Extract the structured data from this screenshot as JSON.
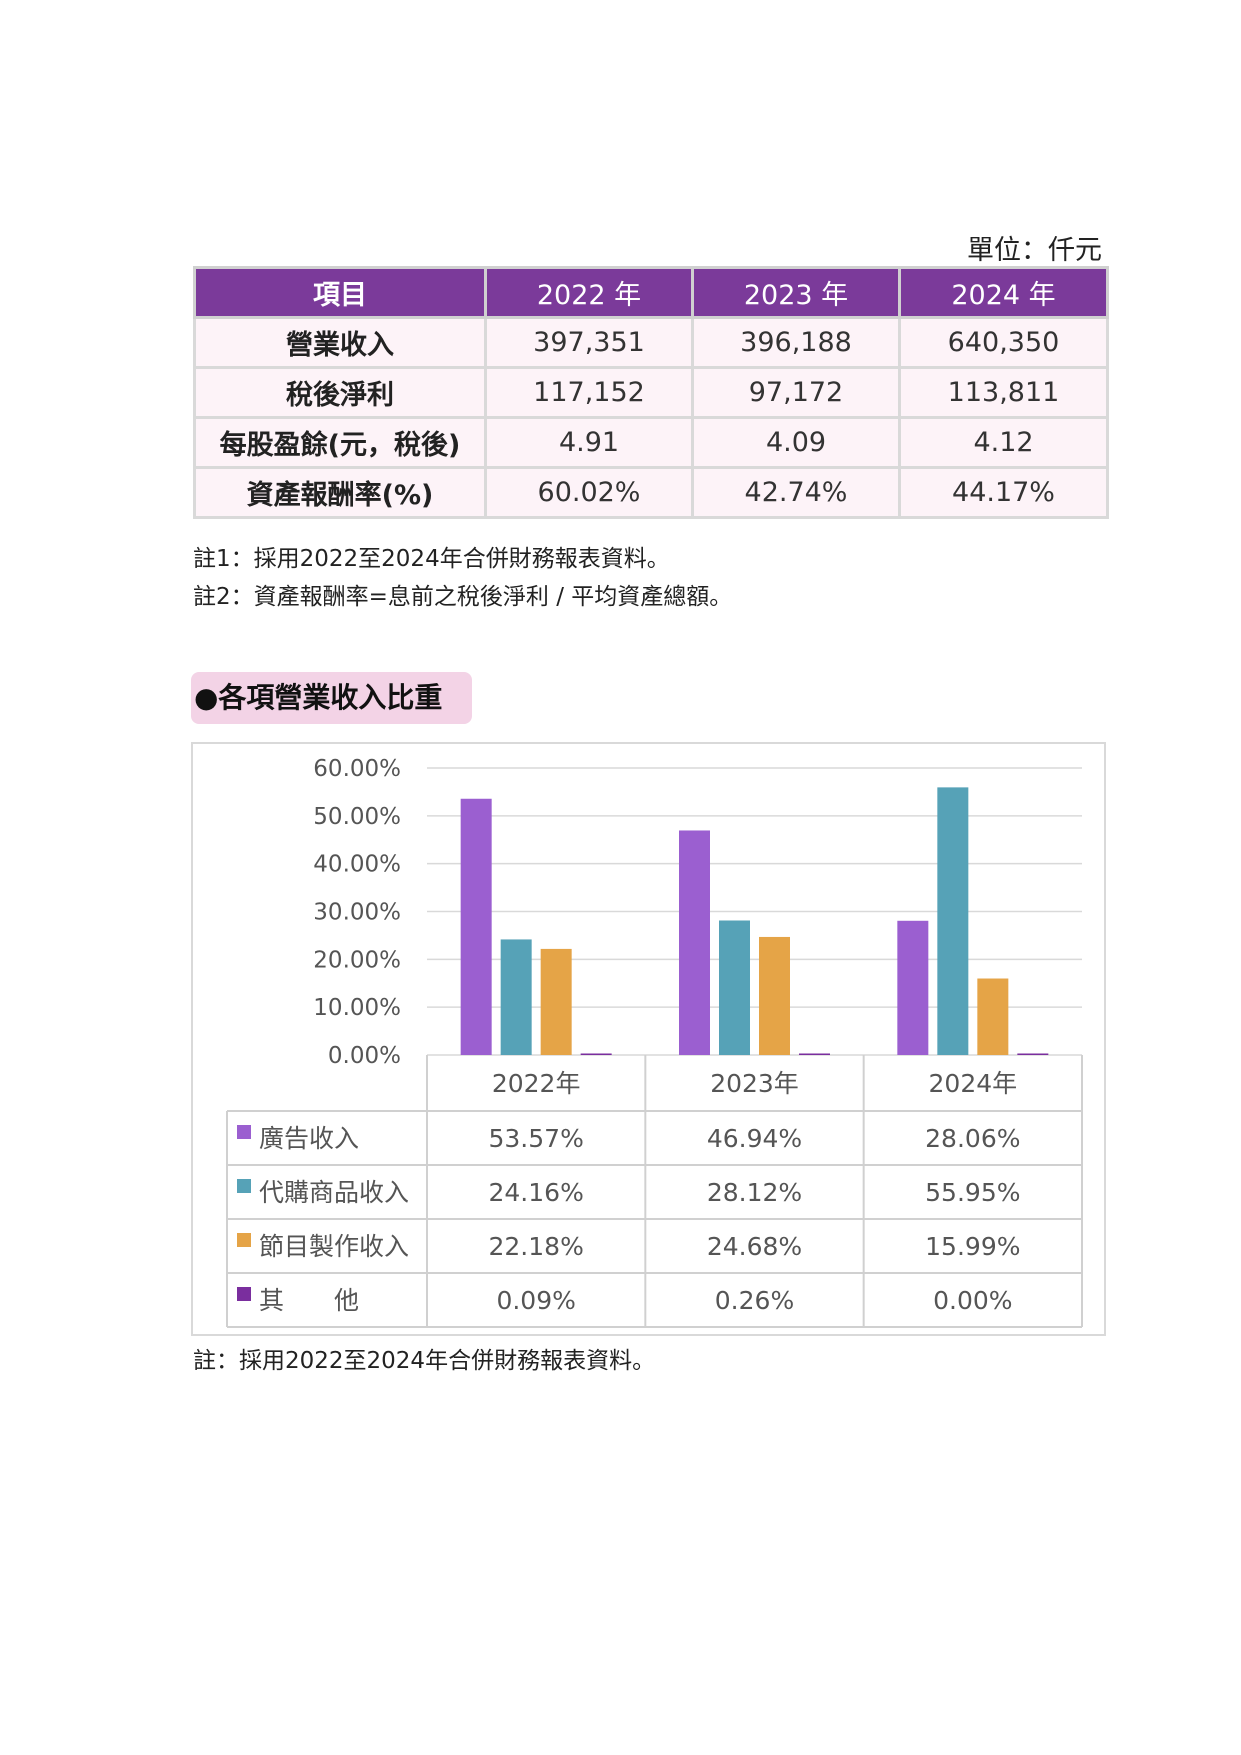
{
  "unit_label": "單位：仟元",
  "financial_table": {
    "headers": [
      "項目",
      "2022 年",
      "2023 年",
      "2024 年"
    ],
    "rows": [
      {
        "label": "營業收入",
        "values": [
          "397,351",
          "396,188",
          "640,350"
        ]
      },
      {
        "label": "稅後淨利",
        "values": [
          "117,152",
          "97,172",
          "113,811"
        ]
      },
      {
        "label": "每股盈餘(元，稅後)",
        "values": [
          "4.91",
          "4.09",
          "4.12"
        ]
      },
      {
        "label": "資產報酬率(%)",
        "values": [
          "60.02%",
          "42.74%",
          "44.17%"
        ]
      }
    ]
  },
  "notes": {
    "note1": "註1：採用2022至2024年合併財務報表資料。",
    "note2": "註2：資產報酬率=息前之稅後淨利 / 平均資產總額。",
    "chart_note": "註：採用2022至2024年合併財務報表資料。"
  },
  "section_title": "●各項營業收入比重",
  "colors": {
    "header_bg": "#7b3a9a",
    "row_bg": "#fdf3f8",
    "section_bg": "#f3d3e6",
    "series": [
      "#9b5fd0",
      "#56a2b7",
      "#e5a447",
      "#7a2e9e"
    ]
  },
  "chart_data": {
    "type": "bar",
    "categories": [
      "2022年",
      "2023年",
      "2024年"
    ],
    "ylim": [
      0,
      60
    ],
    "yticks": [
      "0.00%",
      "10.00%",
      "20.00%",
      "30.00%",
      "40.00%",
      "50.00%",
      "60.00%"
    ],
    "grid": true,
    "series": [
      {
        "name": "廣告收入",
        "values": [
          53.57,
          46.94,
          28.06
        ],
        "labels": [
          "53.57%",
          "46.94%",
          "28.06%"
        ]
      },
      {
        "name": "代購商品收入",
        "values": [
          24.16,
          28.12,
          55.95
        ],
        "labels": [
          "24.16%",
          "28.12%",
          "55.95%"
        ]
      },
      {
        "name": "節目製作收入",
        "values": [
          22.18,
          24.68,
          15.99
        ],
        "labels": [
          "22.18%",
          "24.68%",
          "15.99%"
        ]
      },
      {
        "name": "其　　他",
        "values": [
          0.09,
          0.26,
          0.0
        ],
        "labels": [
          "0.09%",
          "0.26%",
          "0.00%"
        ]
      }
    ]
  }
}
